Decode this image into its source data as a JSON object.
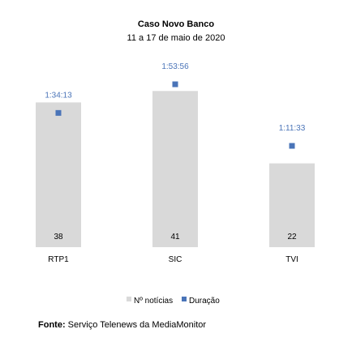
{
  "chart_data": {
    "type": "bar",
    "title": "Caso Novo Banco",
    "subtitle": "11 a 17 de maio de 2020",
    "categories": [
      "RTP1",
      "SIC",
      "TVI"
    ],
    "series": [
      {
        "name": "Nº notícias",
        "type": "bar",
        "values": [
          38,
          41,
          22
        ],
        "color": "#d9d9d9"
      },
      {
        "name": "Duração",
        "type": "marker",
        "values": [
          "1:34:13",
          "1:53:56",
          "1:11:33"
        ],
        "values_seconds": [
          5653,
          6836,
          4293
        ],
        "color": "#4a74b8"
      }
    ],
    "xlabel": "",
    "ylabel": "",
    "legend": "bottom",
    "grid": false
  },
  "source": {
    "label": "Fonte:",
    "text": "Serviço Telenews da MediaMonitor"
  }
}
